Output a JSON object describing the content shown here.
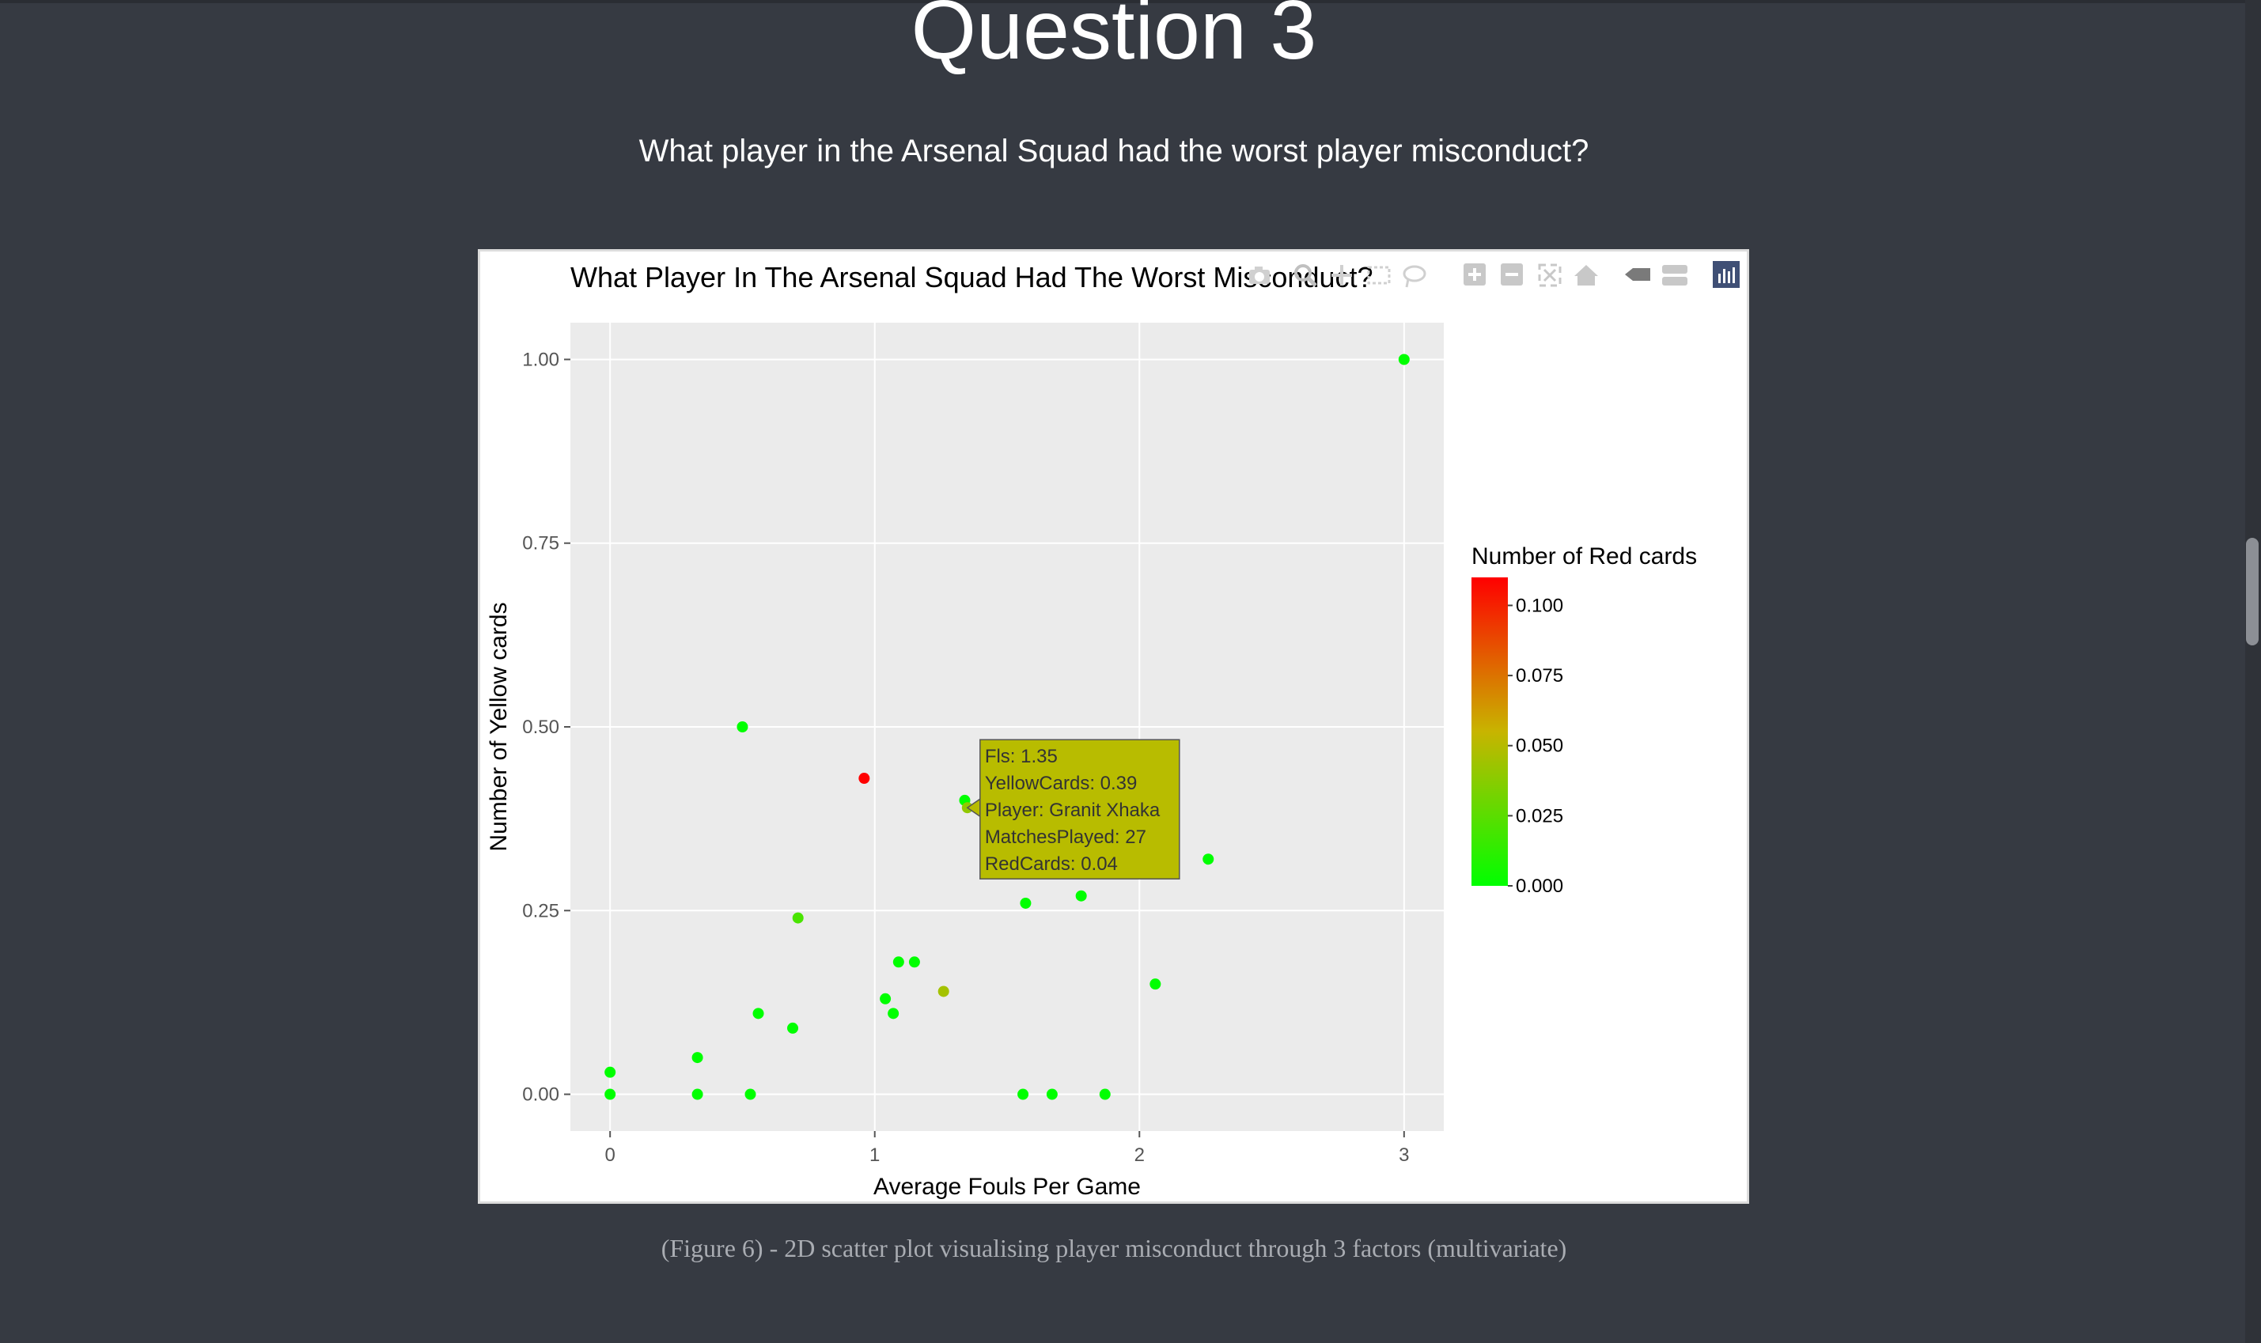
{
  "slide": {
    "title": "Question 3",
    "question": "What player in the Arsenal Squad had the worst player misconduct?",
    "caption": "(Figure 6) - 2D scatter plot visualising player misconduct through 3 factors (multivariate)"
  },
  "modebar_icons": [
    "camera-icon",
    "zoom-icon",
    "pan-icon",
    "box-select-icon",
    "lasso-icon",
    "zoom-in-icon",
    "zoom-out-icon",
    "autoscale-icon",
    "reset-axes-icon",
    "spike-lines-icon",
    "compare-data-icon",
    "plotly-logo-icon"
  ],
  "colors": {
    "page_bg": "#363a42",
    "plot_bg": "#ebebeb",
    "grid": "#ffffff",
    "scale_low": "#00ff00",
    "scale_high": "#ff0000",
    "tooltip_bg": "#b8bc00"
  },
  "chart_data": {
    "type": "scatter",
    "title": "What Player In The Arsenal Squad Had The Worst Misconduct?",
    "xlabel": "Average Fouls Per Game",
    "ylabel": "Number of Yellow cards",
    "xlim": [
      -0.15,
      3.15
    ],
    "ylim": [
      -0.05,
      1.05
    ],
    "xticks": [
      0,
      1,
      2,
      3
    ],
    "xtick_labels": [
      "0",
      "1",
      "2",
      "3"
    ],
    "yticks": [
      0,
      0.25,
      0.5,
      0.75,
      1.0
    ],
    "ytick_labels": [
      "0.00",
      "0.25",
      "0.50",
      "0.75",
      "1.00"
    ],
    "grid": true,
    "colorbar": {
      "title": "Number of Red cards",
      "range": [
        0,
        0.11
      ],
      "ticks": [
        0,
        0.025,
        0.05,
        0.075,
        0.1
      ],
      "tick_labels": [
        "0.000",
        "0.025",
        "0.050",
        "0.075",
        "0.100"
      ]
    },
    "points": [
      {
        "x": 3.0,
        "y": 1.0,
        "red": 0.0
      },
      {
        "x": 0.5,
        "y": 0.5,
        "red": 0.0
      },
      {
        "x": 0.96,
        "y": 0.43,
        "red": 0.11
      },
      {
        "x": 1.34,
        "y": 0.4,
        "red": 0.0
      },
      {
        "x": 1.35,
        "y": 0.39,
        "red": 0.04
      },
      {
        "x": 2.26,
        "y": 0.32,
        "red": 0.0
      },
      {
        "x": 1.57,
        "y": 0.26,
        "red": 0.0
      },
      {
        "x": 1.78,
        "y": 0.27,
        "red": 0.0
      },
      {
        "x": 0.71,
        "y": 0.24,
        "red": 0.02
      },
      {
        "x": 1.09,
        "y": 0.18,
        "red": 0.0
      },
      {
        "x": 1.15,
        "y": 0.18,
        "red": 0.0
      },
      {
        "x": 1.26,
        "y": 0.14,
        "red": 0.045
      },
      {
        "x": 2.06,
        "y": 0.15,
        "red": 0.0
      },
      {
        "x": 1.04,
        "y": 0.13,
        "red": 0.0
      },
      {
        "x": 1.07,
        "y": 0.11,
        "red": 0.0
      },
      {
        "x": 0.56,
        "y": 0.11,
        "red": 0.0
      },
      {
        "x": 0.69,
        "y": 0.09,
        "red": 0.0
      },
      {
        "x": 0.33,
        "y": 0.05,
        "red": 0.0
      },
      {
        "x": 0.0,
        "y": 0.03,
        "red": 0.0
      },
      {
        "x": 0.0,
        "y": 0.0,
        "red": 0.0
      },
      {
        "x": 0.33,
        "y": 0.0,
        "red": 0.0
      },
      {
        "x": 0.53,
        "y": 0.0,
        "red": 0.0
      },
      {
        "x": 1.56,
        "y": 0.0,
        "red": 0.0
      },
      {
        "x": 1.67,
        "y": 0.0,
        "red": 0.0
      },
      {
        "x": 1.87,
        "y": 0.0,
        "red": 0.0
      }
    ],
    "tooltip": {
      "x": 1.35,
      "y": 0.39,
      "lines": [
        "Fls: 1.35",
        "YellowCards: 0.39",
        "Player: Granit Xhaka",
        "MatchesPlayed: 27",
        "RedCards: 0.04"
      ]
    }
  }
}
